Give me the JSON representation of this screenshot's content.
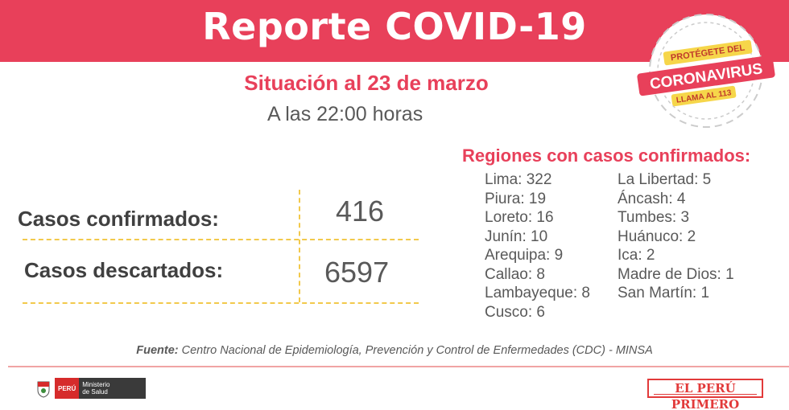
{
  "header": {
    "title": "Reporte COVID-19"
  },
  "report": {
    "subtitle": "Situación al 23 de marzo",
    "time": "A las 22:00 horas"
  },
  "stats": {
    "confirmed": {
      "label": "Casos confirmados:",
      "value": "416"
    },
    "discarded": {
      "label": "Casos descartados:",
      "value": "6597"
    }
  },
  "regions": {
    "title": "Regiones con casos confirmados:",
    "left": [
      "Lima: 322",
      "Piura: 19",
      "Loreto: 16",
      "Junín: 10",
      "Arequipa: 9",
      "Callao: 8",
      "Lambayeque: 8",
      "Cusco: 6"
    ],
    "right": [
      "La Libertad: 5",
      "Áncash: 4",
      "Tumbes: 3",
      "Huánuco: 2",
      "Ica: 2",
      "Madre de Dios: 1",
      "San Martín: 1"
    ]
  },
  "footer": {
    "source_label": "Fuente:",
    "source_text": " Centro Nacional de Epidemiología, Prevención y Control de Enfermedades (CDC) - MINSA",
    "peru_label": "PERÚ",
    "ministry_line1": "Ministerio",
    "ministry_line2": "de Salud",
    "brand": "EL PERÚ PRIMERO"
  },
  "stamp": {
    "top": "PROTÉGETE DEL",
    "main": "CORONAVIRUS",
    "bottom": "LLAMA AL 113"
  },
  "colors": {
    "accent": "#e8405a",
    "dash": "#f2c94c",
    "stamp_yellow": "#f6d64a"
  }
}
